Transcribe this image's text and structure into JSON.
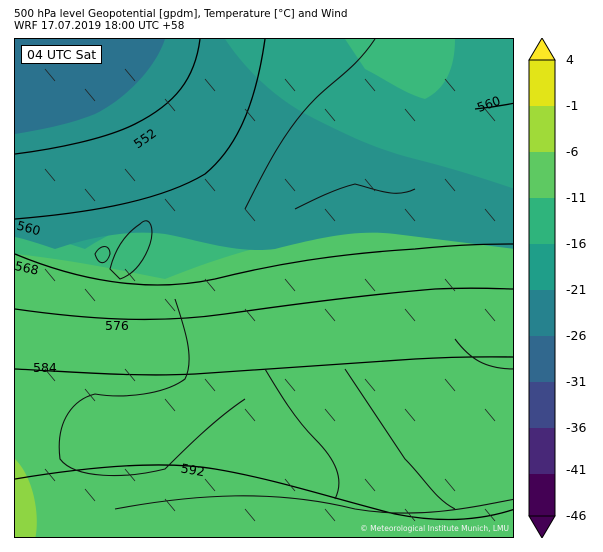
{
  "header": {
    "title": "500 hPa level Geopotential [gpdm], Temperature [°C] and Wind",
    "subtitle": "WRF 17.07.2019 18:00 UTC +58"
  },
  "map": {
    "time_label": "04 UTC Sat",
    "copyright": "© Meteorological Institute Munich, LMU",
    "contour_labels": [
      "552",
      "560",
      "560",
      "568",
      "576",
      "584",
      "592"
    ]
  },
  "colorbar": {
    "ticks": [
      "4",
      "-1",
      "-6",
      "-11",
      "-16",
      "-21",
      "-26",
      "-31",
      "-36",
      "-41",
      "-46"
    ],
    "colors": [
      "#fde725",
      "#a0da39",
      "#4ac16d",
      "#1fa187",
      "#277f8e",
      "#365c8d",
      "#46327e",
      "#440154"
    ]
  }
}
